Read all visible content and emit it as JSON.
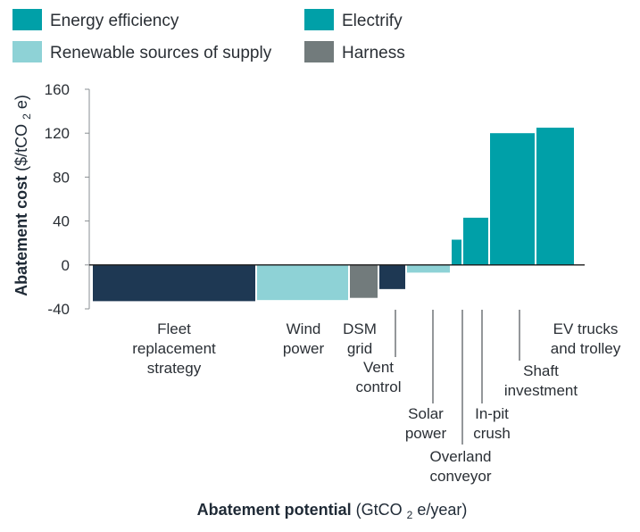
{
  "chart_data": {
    "type": "bar",
    "subtype": "marginal-abatement-cost-curve",
    "legend": [
      {
        "name": "Energy efficiency",
        "color": "#00A0A8"
      },
      {
        "name": "Electrify",
        "color": "#00A0A8"
      },
      {
        "name": "Renewable sources of supply",
        "color": "#8ED2D6"
      },
      {
        "name": "Harness",
        "color": "#727B7C"
      }
    ],
    "series_colors": {
      "Fleet": "#1E3853",
      "Electrify": "#00A0A8",
      "Renewable sources of supply": "#8ED2D6",
      "Harness": "#727B7C"
    },
    "bars": [
      {
        "label_lines": [
          "Fleet",
          "replacement",
          "strategy"
        ],
        "value": -33,
        "width": 184,
        "color": "#1E3853",
        "leader": false
      },
      {
        "label_lines": [
          "Wind",
          "power"
        ],
        "value": -32,
        "width": 104,
        "color": "#8ED2D6",
        "leader": false
      },
      {
        "label_lines": [
          "DSM",
          "grid"
        ],
        "value": -30,
        "width": 33,
        "color": "#727B7C",
        "leader": false
      },
      {
        "label_lines": [
          "Vent",
          "control"
        ],
        "value": -22,
        "width": 31,
        "color": "#1E3853",
        "leader": true
      },
      {
        "label_lines": [
          "Solar",
          "power"
        ],
        "value": -7,
        "width": 50,
        "color": "#8ED2D6",
        "leader": true
      },
      {
        "label_lines": [
          "Overland",
          "conveyor"
        ],
        "value": 23,
        "width": 13,
        "color": "#00A0A8",
        "leader": true
      },
      {
        "label_lines": [
          "In-pit",
          "crush"
        ],
        "value": 43,
        "width": 30,
        "color": "#00A0A8",
        "leader": true
      },
      {
        "label_lines": [
          "Shaft",
          "investment"
        ],
        "value": 120,
        "width": 52,
        "color": "#00A0A8",
        "leader": true
      },
      {
        "label_lines": [
          "EV trucks",
          "and trolley"
        ],
        "value": 125,
        "width": 44,
        "color": "#00A0A8",
        "leader": false
      }
    ],
    "ylabel": {
      "main": "Abatement cost",
      "prefix": "($/tCO",
      "sub": "2",
      "suffix": "e)"
    },
    "xlabel": {
      "main": "Abatement potential",
      "prefix": "(GtCO",
      "sub": "2",
      "suffix": "e/year)"
    },
    "yticks": [
      160,
      120,
      80,
      40,
      0,
      -40
    ],
    "ylim": [
      -40,
      160
    ]
  }
}
